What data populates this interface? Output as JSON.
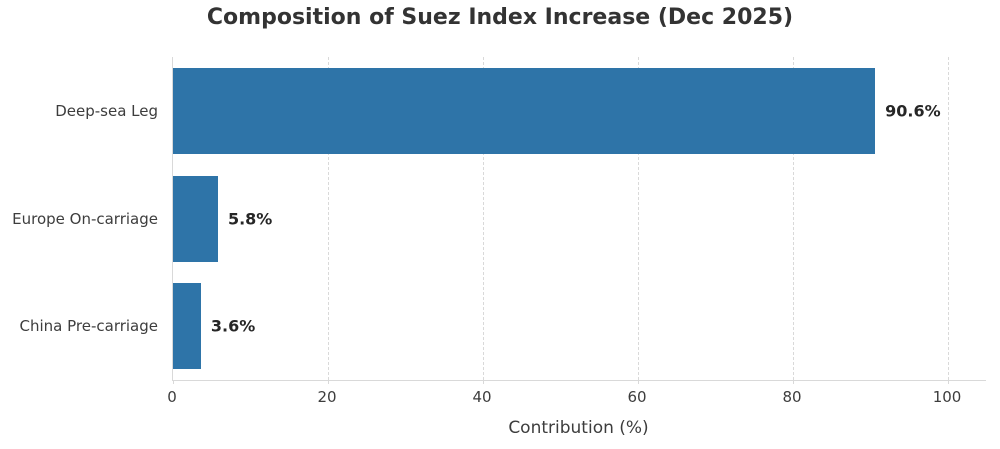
{
  "chart_data": {
    "type": "bar",
    "orientation": "horizontal",
    "title": "Composition of Suez Index Increase (Dec 2025)",
    "xlabel": "Contribution (%)",
    "ylabel": "",
    "categories": [
      "Deep-sea Leg",
      "Europe On-carriage",
      "China Pre-carriage"
    ],
    "values": [
      90.6,
      5.8,
      3.6
    ],
    "value_labels": [
      "90.6%",
      "5.8%",
      "3.6%"
    ],
    "xticks": [
      0,
      20,
      40,
      60,
      80,
      100
    ],
    "xlim": [
      0,
      104.9
    ],
    "grid": "vertical-dashed",
    "legend": "none",
    "colors": {
      "bar": "#2e74a8",
      "grid": "#d9d9d9",
      "title_text": "#333333",
      "axis_text": "#3d3d3d",
      "value_text": "#262626",
      "background": "#ffffff"
    }
  }
}
